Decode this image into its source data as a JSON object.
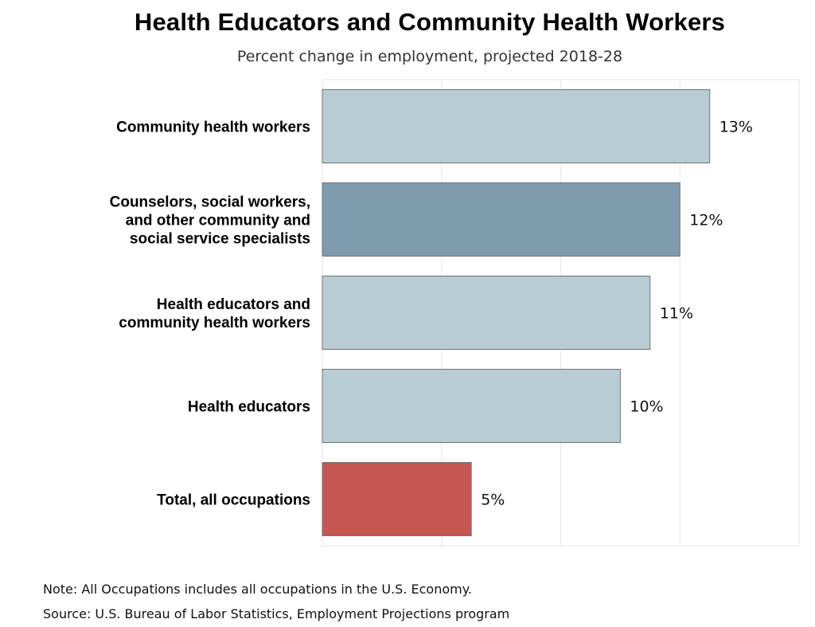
{
  "chart_data": {
    "type": "bar",
    "orientation": "horizontal",
    "title": "Health Educators and Community Health Workers",
    "subtitle": "Percent change in employment, projected 2018-28",
    "xlabel": "",
    "ylabel": "",
    "xlim": [
      0,
      16
    ],
    "grid": true,
    "categories": [
      [
        "Community health workers"
      ],
      [
        "Counselors, social workers,",
        "and other community and",
        "social service specialists"
      ],
      [
        "Health educators and",
        "community health workers"
      ],
      [
        "Health educators"
      ],
      [
        "Total, all occupations"
      ]
    ],
    "values": [
      13,
      12,
      11,
      10,
      5
    ],
    "value_labels": [
      "13%",
      "12%",
      "11%",
      "10%",
      "5%"
    ],
    "colors": [
      "#b8ccd4",
      "#7f9cae",
      "#b8ccd4",
      "#b8ccd4",
      "#c85652"
    ]
  },
  "notes": {
    "note": "Note: All Occupations includes all occupations in the U.S. Economy.",
    "source": "Source: U.S. Bureau of Labor Statistics, Employment Projections program"
  }
}
